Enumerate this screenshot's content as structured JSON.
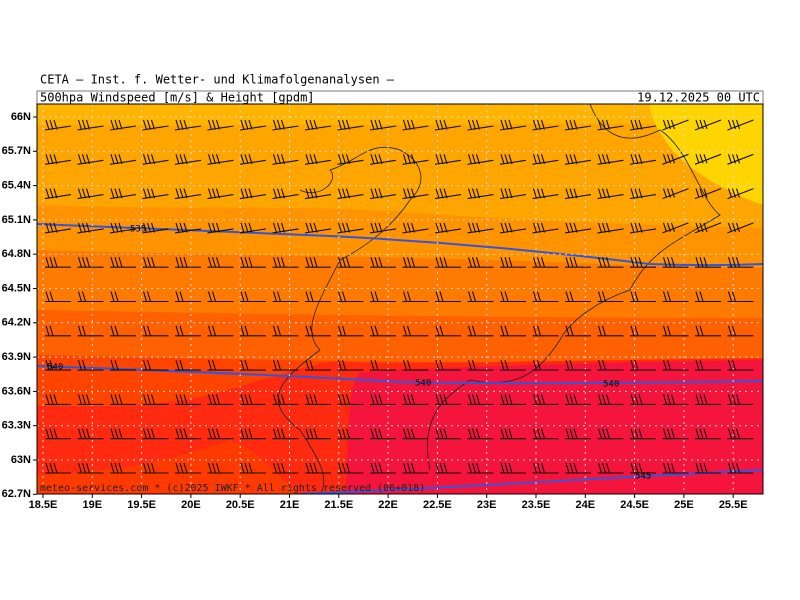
{
  "header": {
    "title": "CETA — Inst. f. Wetter- und Klimafolgenanalysen —",
    "product": "500hpa Windspeed [m/s] & Height [gpdm]",
    "valid": "19.12.2025 00 UTC"
  },
  "map": {
    "lat_labels": [
      "66N",
      "65.7N",
      "65.4N",
      "65.1N",
      "64.8N",
      "64.5N",
      "64.2N",
      "63.9N",
      "63.6N",
      "63.3N",
      "63N",
      "62.7N"
    ],
    "lon_labels": [
      "18.5E",
      "19E",
      "19.5E",
      "20E",
      "20.5E",
      "21E",
      "21.5E",
      "22E",
      "22.5E",
      "23E",
      "23.5E",
      "24E",
      "24.5E",
      "25E",
      "25.5E"
    ],
    "contour_labels": [
      535,
      540,
      540,
      540,
      545
    ],
    "credit": "meteo-services.com * (c)2025 IWKF * All rights reserved (06+018)"
  }
}
